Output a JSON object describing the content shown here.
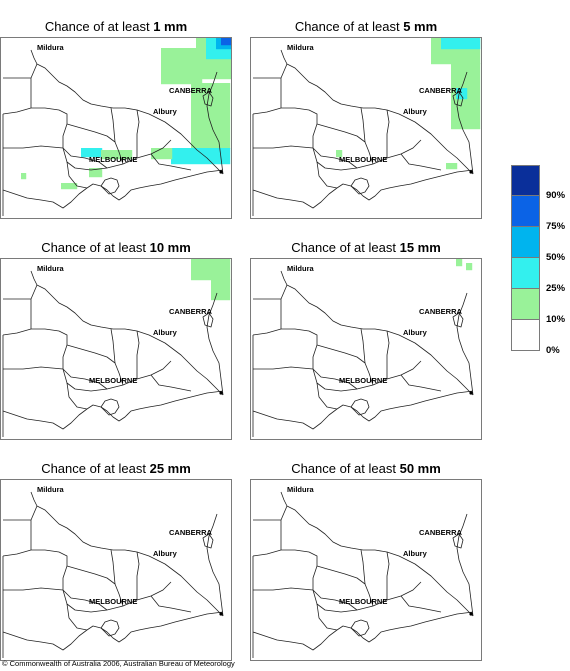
{
  "panels": [
    {
      "prefix": "Chance of at least ",
      "amount": "1 mm"
    },
    {
      "prefix": "Chance of at least ",
      "amount": "5 mm"
    },
    {
      "prefix": "Chance of at least ",
      "amount": "10 mm"
    },
    {
      "prefix": "Chance of at least ",
      "amount": "15 mm"
    },
    {
      "prefix": "Chance of at least ",
      "amount": "25 mm"
    },
    {
      "prefix": "Chance of at least ",
      "amount": "50 mm"
    }
  ],
  "cities": {
    "mildura": "Mildura",
    "canberra": "CANBERRA",
    "albury": "Albury",
    "melbourne": "MELBOURNE"
  },
  "legend": {
    "labels": [
      "90%",
      "75%",
      "50%",
      "25%",
      "10%",
      "0%"
    ],
    "colors": [
      "#0a2f9a",
      "#0b63e6",
      "#00b4ee",
      "#33f0ee",
      "#99f299",
      "#ffffff"
    ]
  },
  "footer": "© Commonwealth of Australia 2006, Australian Bureau of Meteorology"
}
